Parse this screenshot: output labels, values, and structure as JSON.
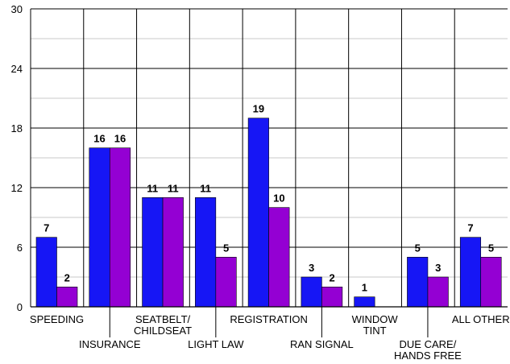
{
  "chart_data": {
    "type": "bar",
    "title": "",
    "xlabel": "",
    "ylabel": "",
    "ylim": [
      0,
      30
    ],
    "yticks": [
      0,
      6,
      12,
      18,
      24,
      30
    ],
    "minor_gridlines": [
      3,
      9,
      15,
      21,
      27
    ],
    "grid": true,
    "legend": "none",
    "categories": [
      {
        "lines": [
          "SPEEDING"
        ],
        "row": "upper"
      },
      {
        "lines": [
          "INSURANCE"
        ],
        "row": "lower"
      },
      {
        "lines": [
          "SEATBELT/",
          "CHILDSEAT"
        ],
        "row": "upper"
      },
      {
        "lines": [
          "LIGHT LAW"
        ],
        "row": "lower"
      },
      {
        "lines": [
          "REGISTRATION"
        ],
        "row": "upper"
      },
      {
        "lines": [
          "RAN SIGNAL"
        ],
        "row": "lower"
      },
      {
        "lines": [
          "WINDOW",
          "TINT"
        ],
        "row": "upper"
      },
      {
        "lines": [
          "DUE CARE/",
          "HANDS FREE"
        ],
        "row": "lower"
      },
      {
        "lines": [
          "ALL OTHER"
        ],
        "row": "upper"
      }
    ],
    "series": [
      {
        "color": "#1616f5",
        "values": [
          7,
          16,
          11,
          11,
          19,
          3,
          1,
          5,
          7
        ]
      },
      {
        "color": "#9400d3",
        "values": [
          2,
          16,
          11,
          5,
          10,
          2,
          null,
          3,
          5
        ]
      }
    ]
  }
}
